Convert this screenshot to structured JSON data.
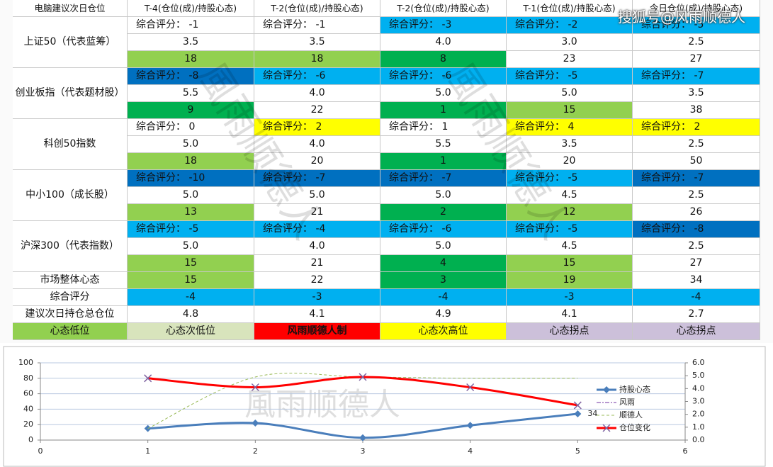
{
  "watermark_top": "搜狐号@风雨顺德人",
  "table": {
    "header": [
      "电脑建议次日仓位",
      "T-4(仓位(成)/持股心态)",
      "T-2(仓位(成)/持股心态)",
      "T-2(仓位(成)/持股心态)",
      "T-1(仓位(成)/持股心态)",
      "今日仓位(成)/持股心态)"
    ],
    "groups": [
      {
        "label": "上证50（代表蓝筹）",
        "rows": [
          [
            {
              "text": "综合评分： -1"
            },
            {
              "text": "综合评分： -1"
            },
            {
              "text": "综合评分： -3",
              "fill": "#00b0f0"
            },
            {
              "text": "综合评分： -2",
              "fill": "#00b0f0"
            },
            {
              "text": "综合评分： -5",
              "fill": "#00b0f0"
            }
          ],
          [
            {
              "text": "3.5"
            },
            {
              "text": "3.5"
            },
            {
              "text": "4.0"
            },
            {
              "text": "3.0"
            },
            {
              "text": "2.5"
            }
          ],
          [
            {
              "text": "18",
              "fill": "#92d050"
            },
            {
              "text": "18",
              "fill": "#92d050"
            },
            {
              "text": "8",
              "fill": "#00b050"
            },
            {
              "text": "23"
            },
            {
              "text": "27"
            }
          ]
        ]
      },
      {
        "label": "创业板指（代表题材股）",
        "rows": [
          [
            {
              "text": "综合评分： -8",
              "fill": "#0070c0"
            },
            {
              "text": "综合评分： -6",
              "fill": "#00b0f0"
            },
            {
              "text": "综合评分： -6",
              "fill": "#00b0f0"
            },
            {
              "text": "综合评分： -5",
              "fill": "#00b0f0"
            },
            {
              "text": "综合评分： -7",
              "fill": "#00b0f0"
            }
          ],
          [
            {
              "text": "5.5"
            },
            {
              "text": "4.0"
            },
            {
              "text": "5.0"
            },
            {
              "text": "5.0"
            },
            {
              "text": "3.5"
            }
          ],
          [
            {
              "text": "9",
              "fill": "#00b050"
            },
            {
              "text": "22"
            },
            {
              "text": "1",
              "fill": "#00b050"
            },
            {
              "text": "15",
              "fill": "#92d050"
            },
            {
              "text": "38"
            }
          ]
        ]
      },
      {
        "label": "科创50指数",
        "rows": [
          [
            {
              "text": "综合评分： 0"
            },
            {
              "text": "综合评分： 2",
              "fill": "#ffff00"
            },
            {
              "text": "综合评分： 1"
            },
            {
              "text": "综合评分： 4",
              "fill": "#ffff00"
            },
            {
              "text": "综合评分： 2",
              "fill": "#ffff00"
            }
          ],
          [
            {
              "text": "5.0"
            },
            {
              "text": "4.0"
            },
            {
              "text": "5.5"
            },
            {
              "text": "3.5"
            },
            {
              "text": "2.5"
            }
          ],
          [
            {
              "text": "18",
              "fill": "#92d050"
            },
            {
              "text": "20"
            },
            {
              "text": "1",
              "fill": "#00b050"
            },
            {
              "text": "20"
            },
            {
              "text": "50"
            }
          ]
        ]
      },
      {
        "label": "中小100（成长股）",
        "rows": [
          [
            {
              "text": "综合评分： -10",
              "fill": "#0070c0"
            },
            {
              "text": "综合评分： -7",
              "fill": "#0070c0"
            },
            {
              "text": "综合评分： -7",
              "fill": "#0070c0"
            },
            {
              "text": "综合评分： -5",
              "fill": "#00b0f0"
            },
            {
              "text": "综合评分： -7",
              "fill": "#0070c0"
            }
          ],
          [
            {
              "text": "5.0"
            },
            {
              "text": "5.0"
            },
            {
              "text": "5.0"
            },
            {
              "text": "4.5"
            },
            {
              "text": "2.5"
            }
          ],
          [
            {
              "text": "13",
              "fill": "#92d050"
            },
            {
              "text": "21"
            },
            {
              "text": "2",
              "fill": "#00b050"
            },
            {
              "text": "12",
              "fill": "#92d050"
            },
            {
              "text": "26"
            }
          ]
        ]
      },
      {
        "label": "沪深300（代表指数）",
        "rows": [
          [
            {
              "text": "综合评分： -5",
              "fill": "#00b0f0"
            },
            {
              "text": "综合评分： -4",
              "fill": "#00b0f0"
            },
            {
              "text": "综合评分： -6",
              "fill": "#00b0f0"
            },
            {
              "text": "综合评分： -5",
              "fill": "#00b0f0"
            },
            {
              "text": "综合评分： -8",
              "fill": "#0070c0"
            }
          ],
          [
            {
              "text": "5.0"
            },
            {
              "text": "4.0"
            },
            {
              "text": "5.0"
            },
            {
              "text": "4.5"
            },
            {
              "text": "2.5"
            }
          ],
          [
            {
              "text": "15",
              "fill": "#92d050"
            },
            {
              "text": "21"
            },
            {
              "text": "4",
              "fill": "#00b050"
            },
            {
              "text": "15",
              "fill": "#92d050"
            },
            {
              "text": "27"
            }
          ]
        ]
      },
      {
        "label": "市场整体心态",
        "rows": [
          [
            {
              "text": "15",
              "fill": "#92d050"
            },
            {
              "text": "22"
            },
            {
              "text": "3",
              "fill": "#00b050"
            },
            {
              "text": "19",
              "fill": "#92d050"
            },
            {
              "text": "34"
            }
          ]
        ]
      },
      {
        "label": "综合评分",
        "rows": [
          [
            {
              "text": "-4",
              "fill": "#00b0f0"
            },
            {
              "text": "-3",
              "fill": "#00b0f0"
            },
            {
              "text": "-4",
              "fill": "#00b0f0"
            },
            {
              "text": "-3",
              "fill": "#00b0f0"
            },
            {
              "text": "-4",
              "fill": "#00b0f0"
            }
          ]
        ]
      },
      {
        "label": "建议次日持仓总仓位",
        "rows": [
          [
            {
              "text": "4.8"
            },
            {
              "text": "4.1"
            },
            {
              "text": "4.9"
            },
            {
              "text": "4.1"
            },
            {
              "text": "2.7"
            }
          ]
        ]
      }
    ],
    "legend": [
      {
        "text": "心态低位",
        "fill": "#92d050"
      },
      {
        "text": "心态次低位",
        "fill": "#d8e4bc"
      },
      {
        "text": "风雨顺德人制",
        "fill": "#ff0000",
        "bold": true
      },
      {
        "text": "心态次高位",
        "fill": "#ffff00"
      },
      {
        "text": "心态拐点",
        "fill": "#ccc0da"
      },
      {
        "text": "心态拐点",
        "fill": "#ccc0da"
      }
    ]
  },
  "chart_data": {
    "type": "line",
    "watermark": "風雨顺德人",
    "x": [
      1,
      2,
      3,
      4,
      5
    ],
    "xlim": [
      0,
      6
    ],
    "xticks": [
      0,
      1,
      2,
      3,
      4,
      5,
      6
    ],
    "ylim": [
      0,
      100
    ],
    "yticks": [
      0,
      20,
      40,
      60,
      80,
      100
    ],
    "y2lim": [
      0,
      6
    ],
    "y2ticks": [
      {
        "value": 0,
        "label": "0.0"
      },
      {
        "value": 1,
        "label": "1.0"
      },
      {
        "value": 2,
        "label": "2.0"
      },
      {
        "value": 3,
        "label": "3.0"
      },
      {
        "value": 4,
        "label": "4.0"
      },
      {
        "value": 5,
        "label": "5.0"
      },
      {
        "value": 6,
        "label": "6.0"
      }
    ],
    "grid": true,
    "legend": "right",
    "series": [
      {
        "name": "持股心态",
        "color": "#4a7ebb",
        "marker": "diamond",
        "width": 3,
        "data_labels": "last",
        "values": [
          15,
          22,
          3,
          19,
          34
        ]
      },
      {
        "name": "风雨",
        "color": "#7030a0",
        "dash": "6 2 2 2",
        "width": 1,
        "axis": "y2",
        "values": [
          null,
          null,
          null,
          null,
          null
        ]
      },
      {
        "name": "顺德人",
        "color": "#9bbb59",
        "dash": "4 3",
        "width": 1,
        "axis": "y2",
        "values": [
          0.9,
          4.9,
          4.9,
          4.8,
          4.8
        ]
      },
      {
        "name": "仓位变化",
        "color": "#ff0000",
        "marker": "x",
        "width": 3,
        "axis": "y2",
        "values": [
          4.8,
          4.1,
          4.9,
          4.1,
          2.7
        ]
      }
    ]
  }
}
